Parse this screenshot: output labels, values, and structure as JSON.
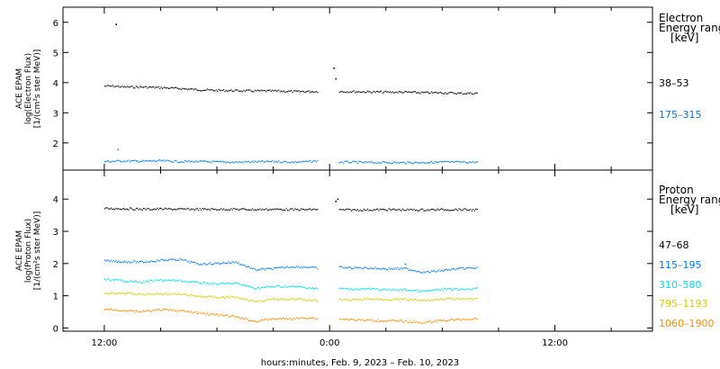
{
  "chart_data": [
    {
      "type": "scatter",
      "ylabel_lines": [
        "ACE EPAM",
        "log(Electron Flux)",
        "[1/(cm²s ster MeV)]"
      ],
      "legend_title": [
        "Electron",
        "Energy range",
        "[keV]"
      ],
      "ylim": [
        1.1,
        6.5
      ],
      "yticks": [
        "2",
        "3",
        "4",
        "5",
        "6"
      ],
      "series": [
        {
          "name": "38–53",
          "color": "#000000",
          "segments": [
            {
              "x": [
                0,
                0.5,
                1,
                2,
                3,
                4,
                5,
                6,
                7,
                8,
                9,
                10,
                11,
                11.4
              ],
              "y": [
                3.9,
                3.9,
                3.87,
                3.87,
                3.85,
                3.82,
                3.78,
                3.76,
                3.75,
                3.74,
                3.74,
                3.72,
                3.72,
                3.72
              ]
            },
            {
              "x": [
                12.5,
                13,
                14,
                15,
                16,
                17,
                18,
                19,
                19.9
              ],
              "y": [
                3.72,
                3.72,
                3.71,
                3.7,
                3.7,
                3.68,
                3.68,
                3.66,
                3.66
              ]
            }
          ],
          "outliers": {
            "x": [
              0.6,
              12.2,
              12.3
            ],
            "y": [
              5.95,
              4.5,
              4.15
            ]
          }
        },
        {
          "name": "175–315",
          "color": "#0077ff",
          "segments": [
            {
              "x": [
                0,
                1,
                2,
                3,
                4,
                5,
                6,
                7,
                8,
                9,
                10,
                11,
                11.4
              ],
              "y": [
                1.4,
                1.42,
                1.41,
                1.42,
                1.4,
                1.4,
                1.38,
                1.38,
                1.39,
                1.4,
                1.38,
                1.4,
                1.42
              ]
            },
            {
              "x": [
                12.5,
                13,
                14,
                15,
                16,
                17,
                18,
                19,
                19.9
              ],
              "y": [
                1.38,
                1.38,
                1.37,
                1.37,
                1.36,
                1.37,
                1.38,
                1.38,
                1.38
              ]
            }
          ],
          "outliers": {
            "x": [
              0.7
            ],
            "y": [
              1.8
            ]
          }
        }
      ]
    },
    {
      "type": "scatter",
      "ylabel_lines": [
        "ACE EPAM",
        "log(Proton Flux)",
        "[1/(cm²s ster MeV)]"
      ],
      "legend_title": [
        "Proton",
        "Energy range",
        "[keV]"
      ],
      "ylim": [
        -0.1,
        4.9
      ],
      "yticks": [
        "0",
        "1",
        "2",
        "3",
        "4"
      ],
      "series": [
        {
          "name": "47–68",
          "color": "#000000",
          "segments": [
            {
              "x": [
                0,
                1,
                2,
                3,
                4,
                5,
                6,
                7,
                8,
                9,
                10,
                11,
                11.4
              ],
              "y": [
                3.72,
                3.72,
                3.7,
                3.71,
                3.7,
                3.7,
                3.7,
                3.7,
                3.69,
                3.7,
                3.69,
                3.69,
                3.7
              ]
            },
            {
              "x": [
                12.5,
                13,
                14,
                15,
                16,
                17,
                18,
                19,
                19.9
              ],
              "y": [
                3.68,
                3.68,
                3.68,
                3.69,
                3.68,
                3.68,
                3.69,
                3.69,
                3.68
              ]
            }
          ],
          "outliers": {
            "x": [
              12.4,
              12.3
            ],
            "y": [
              4.02,
              3.95
            ]
          }
        },
        {
          "name": "115–195",
          "color": "#0077ff",
          "segments": [
            {
              "x": [
                0,
                1,
                2,
                3,
                4,
                5,
                6,
                7,
                8,
                9,
                10,
                11,
                11.4
              ],
              "y": [
                2.1,
                2.07,
                2.06,
                2.12,
                2.14,
                2.0,
                2.02,
                2.06,
                1.82,
                1.86,
                1.92,
                1.9,
                1.86
              ]
            },
            {
              "x": [
                12.5,
                13,
                14,
                15,
                16,
                17,
                18,
                19,
                19.9
              ],
              "y": [
                1.9,
                1.88,
                1.88,
                1.85,
                1.86,
                1.74,
                1.8,
                1.86,
                1.88
              ]
            }
          ],
          "outliers": {
            "x": [
              16.0
            ],
            "y": [
              2.0
            ]
          }
        },
        {
          "name": "310–580",
          "color": "#00e0e0",
          "segments": [
            {
              "x": [
                0,
                1,
                2,
                3,
                4,
                5,
                6,
                7,
                8,
                9,
                10,
                11,
                11.4
              ],
              "y": [
                1.52,
                1.48,
                1.44,
                1.5,
                1.48,
                1.42,
                1.38,
                1.4,
                1.25,
                1.3,
                1.3,
                1.26,
                1.22
              ]
            },
            {
              "x": [
                12.5,
                13,
                14,
                15,
                16,
                17,
                18,
                19,
                19.9
              ],
              "y": [
                1.25,
                1.22,
                1.23,
                1.2,
                1.2,
                1.15,
                1.22,
                1.22,
                1.24
              ]
            }
          ],
          "outliers": {
            "x": [],
            "y": []
          }
        },
        {
          "name": "795–1193",
          "color": "#d0d000",
          "segments": [
            {
              "x": [
                0,
                1,
                2,
                3,
                4,
                5,
                6,
                7,
                8,
                9,
                10,
                11,
                11.4
              ],
              "y": [
                1.1,
                1.1,
                1.05,
                1.08,
                1.06,
                1.0,
                0.96,
                0.98,
                0.84,
                0.9,
                0.92,
                0.88,
                0.84
              ]
            },
            {
              "x": [
                12.5,
                13,
                14,
                15,
                16,
                17,
                18,
                19,
                19.9
              ],
              "y": [
                0.9,
                0.88,
                0.92,
                0.9,
                0.9,
                0.86,
                0.92,
                0.9,
                0.92
              ]
            }
          ],
          "outliers": {
            "x": [],
            "y": []
          }
        },
        {
          "name": "1060–1900",
          "color": "#ff8c00",
          "segments": [
            {
              "x": [
                0,
                1,
                2,
                3,
                4,
                5,
                6,
                7,
                8,
                9,
                10,
                11,
                11.4
              ],
              "y": [
                0.6,
                0.56,
                0.52,
                0.58,
                0.55,
                0.48,
                0.42,
                0.36,
                0.22,
                0.3,
                0.3,
                0.34,
                0.28
              ]
            },
            {
              "x": [
                12.5,
                13,
                14,
                15,
                16,
                17,
                18,
                19,
                19.9
              ],
              "y": [
                0.3,
                0.28,
                0.25,
                0.24,
                0.22,
                0.18,
                0.25,
                0.28,
                0.3
              ]
            }
          ],
          "outliers": {
            "x": [],
            "y": []
          }
        }
      ]
    }
  ],
  "x_axis": {
    "title": "hours:minutes, Feb.  9, 2023 – Feb. 10, 2023",
    "range_hours": [
      -2.2,
      29.2
    ],
    "tick_labels": [
      {
        "hour": 0,
        "label": "12:00"
      },
      {
        "hour": 12,
        "label": "0:00"
      },
      {
        "hour": 24,
        "label": "12:00"
      }
    ],
    "minor_tick_hours": 3
  }
}
